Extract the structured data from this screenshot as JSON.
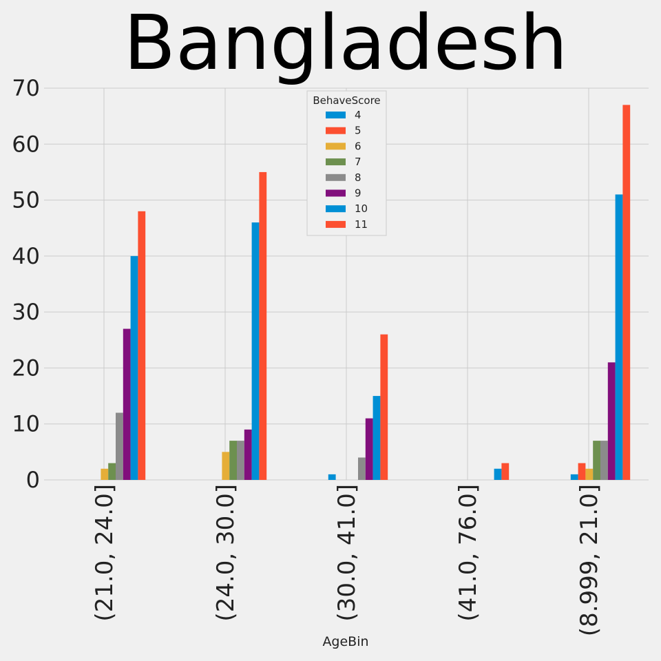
{
  "chart_data": {
    "type": "bar",
    "title": "Bangladesh",
    "xlabel": "AgeBin",
    "ylabel": "",
    "ylim": [
      0,
      70
    ],
    "yticks": [
      0,
      10,
      20,
      30,
      40,
      50,
      60,
      70
    ],
    "grid": true,
    "legend_title": "BehaveScore",
    "legend_position": "top-center",
    "categories": [
      "(21.0, 24.0]",
      "(24.0, 30.0]",
      "(30.0, 41.0]",
      "(41.0, 76.0]",
      "(8.999, 21.0]"
    ],
    "series": [
      {
        "name": "4",
        "color": "#008fd5",
        "values": [
          0,
          0,
          1,
          0,
          1
        ]
      },
      {
        "name": "5",
        "color": "#fc4f30",
        "values": [
          0,
          0,
          0,
          0,
          3
        ]
      },
      {
        "name": "6",
        "color": "#e5ae38",
        "values": [
          2,
          5,
          0,
          0,
          2
        ]
      },
      {
        "name": "7",
        "color": "#6d904f",
        "values": [
          3,
          7,
          0,
          0,
          7
        ]
      },
      {
        "name": "8",
        "color": "#8b8b8b",
        "values": [
          12,
          7,
          4,
          0,
          7
        ]
      },
      {
        "name": "9",
        "color": "#810f7c",
        "values": [
          27,
          9,
          11,
          0,
          21
        ]
      },
      {
        "name": "10",
        "color": "#008fd5",
        "values": [
          40,
          46,
          15,
          2,
          51
        ]
      },
      {
        "name": "11",
        "color": "#fc4f30",
        "values": [
          48,
          55,
          26,
          3,
          67
        ]
      }
    ]
  }
}
